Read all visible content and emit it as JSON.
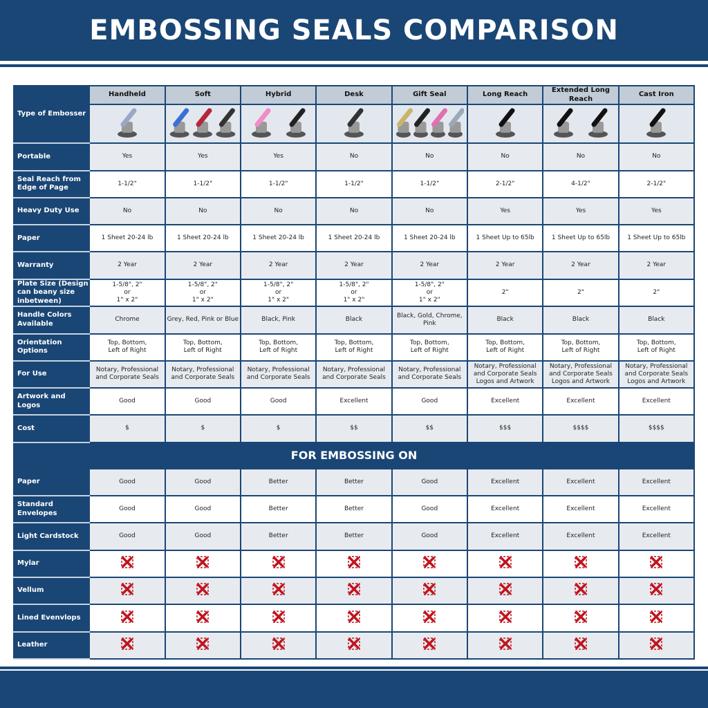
{
  "title": "EMBOSSING SEALS COMPARISON",
  "columns": [
    "Handheld",
    "Soft",
    "Hybrid",
    "Desk",
    "Gift Seal",
    "Long Reach",
    "Extended Long Reach",
    "Cast Iron"
  ],
  "image_row_label": "Type of Embosser",
  "product_colors": [
    [
      "#9aa7c8"
    ],
    [
      "#3a6fd8",
      "#b4283a",
      "#333"
    ],
    [
      "#f08cc8",
      "#222"
    ],
    [
      "#333"
    ],
    [
      "#c9b56a",
      "#222",
      "#e070b0",
      "#9ab"
    ],
    [
      "#111"
    ],
    [
      "#111",
      "#111"
    ],
    [
      "#111"
    ]
  ],
  "rows": [
    {
      "label": "Portable",
      "values": [
        "Yes",
        "Yes",
        "Yes",
        "No",
        "No",
        "No",
        "No",
        "No"
      ]
    },
    {
      "label": "Seal Reach from Edge of Page",
      "values": [
        "1-1/2\"",
        "1-1/2\"",
        "1-1/2\"",
        "1-1/2\"",
        "1-1/2\"",
        "2-1/2\"",
        "4-1/2\"",
        "2-1/2\""
      ]
    },
    {
      "label": "Heavy Duty Use",
      "values": [
        "No",
        "No",
        "No",
        "No",
        "No",
        "Yes",
        "Yes",
        "Yes"
      ]
    },
    {
      "label": "Paper",
      "values": [
        "1 Sheet 20-24 lb",
        "1 Sheet 20-24 lb",
        "1 Sheet 20-24 lb",
        "1 Sheet 20-24 lb",
        "1 Sheet 20-24 lb",
        "1 Sheet Up to 65lb",
        "1 Sheet Up to 65lb",
        "1 Sheet Up to 65lb"
      ]
    },
    {
      "label": "Warranty",
      "values": [
        "2 Year",
        "2 Year",
        "2 Year",
        "2 Year",
        "2 Year",
        "2 Year",
        "2 Year",
        "2 Year"
      ]
    },
    {
      "label": "Plate Size (Design can beany size inbetween)",
      "values": [
        "1-5/8\", 2\"\nor\n1\" x 2\"",
        "1-5/8\", 2\"\nor\n1\" x 2\"",
        "1-5/8\", 2\"\nor\n1\" x 2\"",
        "1-5/8\", 2\"\nor\n1\" x 2\"",
        "1-5/8\", 2\"\nor\n1\" x 2\"",
        "2\"",
        "2\"",
        "2\""
      ]
    },
    {
      "label": "Handle Colors Available",
      "values": [
        "Chrome",
        "Grey, Red, Pink or Blue",
        "Black, Pink",
        "Black",
        "Black, Gold, Chrome, Pink",
        "Black",
        "Black",
        "Black"
      ]
    },
    {
      "label": "Orientation Options",
      "values": [
        "Top, Bottom,\nLeft of Right",
        "Top, Bottom,\nLeft of Right",
        "Top, Bottom,\nLeft of Right",
        "Top, Bottom,\nLeft of Right",
        "Top, Bottom,\nLeft of Right",
        "Top, Bottom,\nLeft of Right",
        "Top, Bottom,\nLeft of Right",
        "Top, Bottom,\nLeft of Right"
      ]
    },
    {
      "label": "For Use",
      "values": [
        "Notary, Professional\nand Corporate Seals",
        "Notary, Professional\nand Corporate Seals",
        "Notary, Professional\nand Corporate Seals",
        "Notary, Professional\nand Corporate Seals",
        "Notary, Professional\nand Corporate Seals",
        "Notary, Professional\nand Corporate Seals\nLogos and Artwork",
        "Notary, Professional\nand Corporate Seals\nLogos and Artwork",
        "Notary, Professional\nand Corporate Seals\nLogos and Artwork"
      ]
    },
    {
      "label": "Artwork and Logos",
      "values": [
        "Good",
        "Good",
        "Good",
        "Excellent",
        "Good",
        "Excellent",
        "Excellent",
        "Excellent"
      ]
    },
    {
      "label": "Cost",
      "values": [
        "$",
        "$",
        "$",
        "$$",
        "$$",
        "$$$",
        "$$$$",
        "$$$$"
      ]
    }
  ],
  "section_title": "FOR EMBOSSING ON",
  "embossing_rows": [
    {
      "label": "Paper",
      "values": [
        "Good",
        "Good",
        "Better",
        "Better",
        "Good",
        "Excellent",
        "Excellent",
        "Excellent"
      ]
    },
    {
      "label": "Standard Envelopes",
      "values": [
        "Good",
        "Good",
        "Better",
        "Better",
        "Good",
        "Excellent",
        "Excellent",
        "Excellent"
      ]
    },
    {
      "label": "Light Cardstock",
      "values": [
        "Good",
        "Good",
        "Better",
        "Better",
        "Good",
        "Excellent",
        "Excellent",
        "Excellent"
      ]
    },
    {
      "label": "Mylar",
      "values": [
        "x-icon",
        "x-icon",
        "x-icon",
        "x-icon",
        "x-icon",
        "x-icon",
        "x-icon",
        "x-icon"
      ]
    },
    {
      "label": "Vellum",
      "values": [
        "x-icon",
        "x-icon",
        "x-icon",
        "x-icon",
        "x-icon",
        "x-icon",
        "x-icon",
        "x-icon"
      ]
    },
    {
      "label": "Lined Evenvlops",
      "values": [
        "x-icon",
        "x-icon",
        "x-icon",
        "x-icon",
        "x-icon",
        "x-icon",
        "x-icon",
        "x-icon"
      ]
    },
    {
      "label": "Leather",
      "values": [
        "x-icon",
        "x-icon",
        "x-icon",
        "x-icon",
        "x-icon",
        "x-icon",
        "x-icon",
        "x-icon"
      ]
    }
  ],
  "colors": {
    "brand": "#1a4675",
    "x_red": "#c0141e",
    "header_grey": "#c2ccd7",
    "row_grey": "#e7ebf0"
  }
}
